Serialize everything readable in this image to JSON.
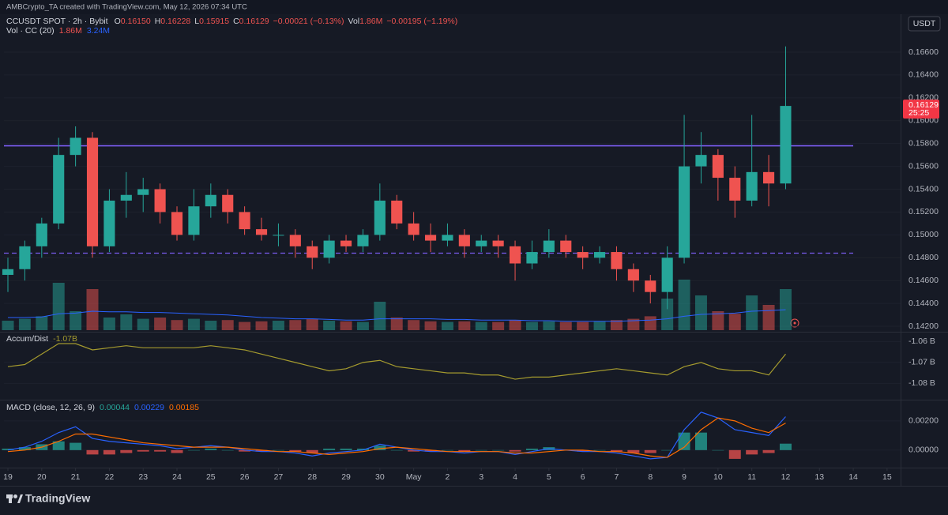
{
  "credit": "AMBCrypto_TA created with TradingView.com, May 12, 2026 07:34 UTC",
  "currency": "USDT",
  "watermark": "TradingView",
  "chart_data": [
    {
      "type": "candlestick",
      "title": "CCUSDT SPOT · 2h · Bybit",
      "ohlc_legend": [
        {
          "key": "O",
          "value": "0.16150"
        },
        {
          "key": "H",
          "value": "0.16228"
        },
        {
          "key": "L",
          "value": "0.15915"
        },
        {
          "key": "C",
          "value": "0.16129"
        }
      ],
      "change": "−0.00021 (−0.13%)",
      "vol_key": "Vol",
      "vol_value": "1.86M",
      "vol_change": "−0.00195 (−1.19%)",
      "colors": {
        "up": "#26a69a",
        "down": "#ef5350"
      },
      "x": [
        0,
        0.5,
        1,
        1.5,
        2,
        2.5,
        3,
        3.5,
        4,
        4.5,
        5,
        5.5,
        6,
        6.5,
        7,
        7.5,
        8,
        8.5,
        9,
        9.5,
        10,
        10.5,
        11,
        11.5,
        12,
        12.5,
        13,
        13.5,
        14,
        14.5,
        15,
        15.5,
        16,
        16.5,
        17,
        17.5,
        18,
        18.5,
        19,
        19.5,
        20,
        20.5,
        21,
        21.5,
        22,
        22.5,
        23
      ],
      "open": [
        0.1465,
        0.147,
        0.149,
        0.151,
        0.157,
        0.1585,
        0.149,
        0.153,
        0.1535,
        0.154,
        0.152,
        0.15,
        0.1525,
        0.1535,
        0.152,
        0.1505,
        0.15,
        0.15,
        0.149,
        0.148,
        0.1495,
        0.149,
        0.15,
        0.153,
        0.151,
        0.15,
        0.1495,
        0.15,
        0.149,
        0.1495,
        0.149,
        0.1475,
        0.1485,
        0.1495,
        0.1485,
        0.148,
        0.1485,
        0.147,
        0.146,
        0.145,
        0.148,
        0.156,
        0.157,
        0.155,
        0.153,
        0.1555,
        0.1545
      ],
      "high": [
        0.148,
        0.1495,
        0.1515,
        0.1585,
        0.1595,
        0.159,
        0.154,
        0.1555,
        0.155,
        0.1545,
        0.1525,
        0.154,
        0.1545,
        0.154,
        0.1525,
        0.1515,
        0.151,
        0.1505,
        0.1495,
        0.15,
        0.15,
        0.1505,
        0.1545,
        0.1535,
        0.152,
        0.151,
        0.151,
        0.1505,
        0.15,
        0.15,
        0.1495,
        0.1495,
        0.1505,
        0.15,
        0.149,
        0.149,
        0.149,
        0.1475,
        0.1465,
        0.149,
        0.1605,
        0.159,
        0.1575,
        0.156,
        0.1605,
        0.157,
        0.1665
      ],
      "low": [
        0.145,
        0.146,
        0.148,
        0.1505,
        0.156,
        0.148,
        0.1485,
        0.1515,
        0.152,
        0.151,
        0.1495,
        0.1495,
        0.1515,
        0.151,
        0.15,
        0.1495,
        0.149,
        0.148,
        0.147,
        0.1475,
        0.1485,
        0.1485,
        0.1495,
        0.1505,
        0.1495,
        0.1485,
        0.149,
        0.148,
        0.1485,
        0.148,
        0.146,
        0.147,
        0.148,
        0.148,
        0.147,
        0.1475,
        0.146,
        0.145,
        0.144,
        0.1435,
        0.1475,
        0.1545,
        0.153,
        0.1515,
        0.1525,
        0.1525,
        0.154
      ],
      "close": [
        0.147,
        0.149,
        0.151,
        0.157,
        0.1585,
        0.149,
        0.153,
        0.1535,
        0.154,
        0.152,
        0.15,
        0.1525,
        0.1535,
        0.152,
        0.1505,
        0.15,
        0.15,
        0.149,
        0.148,
        0.1495,
        0.149,
        0.15,
        0.153,
        0.151,
        0.15,
        0.1495,
        0.15,
        0.149,
        0.1495,
        0.149,
        0.1475,
        0.1485,
        0.1495,
        0.1485,
        0.148,
        0.1485,
        0.147,
        0.146,
        0.145,
        0.148,
        0.156,
        0.157,
        0.155,
        0.153,
        0.1555,
        0.1545,
        0.16129
      ],
      "volume": {
        "name": "Vol · CC (20)",
        "last": "1.86M",
        "ma_last": "3.24M",
        "ma_color": "#2962ff",
        "values": [
          1.5,
          1.8,
          2.2,
          7.5,
          3.0,
          6.5,
          2.0,
          2.5,
          1.8,
          2.0,
          1.6,
          1.8,
          1.5,
          1.6,
          1.3,
          1.4,
          1.5,
          1.6,
          1.8,
          1.5,
          1.4,
          1.3,
          4.5,
          2.0,
          1.6,
          1.4,
          1.3,
          1.4,
          1.3,
          1.3,
          1.6,
          1.3,
          1.4,
          1.3,
          1.3,
          1.4,
          1.6,
          1.8,
          2.2,
          5.0,
          8.0,
          5.5,
          3.0,
          2.6,
          5.5,
          4.0,
          6.5
        ],
        "ma": [
          2.0,
          2.0,
          2.1,
          2.6,
          2.7,
          3.0,
          2.9,
          2.9,
          2.8,
          2.8,
          2.7,
          2.6,
          2.5,
          2.4,
          2.2,
          2.0,
          1.9,
          1.8,
          1.8,
          1.7,
          1.6,
          1.6,
          1.8,
          1.8,
          1.8,
          1.8,
          1.7,
          1.7,
          1.6,
          1.6,
          1.6,
          1.5,
          1.5,
          1.4,
          1.4,
          1.4,
          1.4,
          1.5,
          1.6,
          1.8,
          2.2,
          2.5,
          2.6,
          2.7,
          3.0,
          3.1,
          3.24
        ]
      },
      "hlines": [
        {
          "value": 0.1578,
          "dashed": false,
          "color": "#7b5cf0"
        },
        {
          "value": 0.1484,
          "dashed": true,
          "color": "#7b5cf0"
        }
      ],
      "price_tag": {
        "value": 0.16129,
        "label": "0.16129",
        "countdown": "25:25",
        "color": "#f23645"
      },
      "xlim": [
        -0.117,
        26.4
      ],
      "xticks": [
        {
          "value": 0,
          "label": "19"
        },
        {
          "value": 1,
          "label": "20"
        },
        {
          "value": 2,
          "label": "21"
        },
        {
          "value": 3,
          "label": "22"
        },
        {
          "value": 4,
          "label": "23"
        },
        {
          "value": 5,
          "label": "24"
        },
        {
          "value": 6,
          "label": "25"
        },
        {
          "value": 7,
          "label": "26"
        },
        {
          "value": 8,
          "label": "27"
        },
        {
          "value": 9,
          "label": "28"
        },
        {
          "value": 10,
          "label": "29"
        },
        {
          "value": 11,
          "label": "30"
        },
        {
          "value": 12,
          "label": "May"
        },
        {
          "value": 13,
          "label": "2"
        },
        {
          "value": 14,
          "label": "3"
        },
        {
          "value": 15,
          "label": "4"
        },
        {
          "value": 16,
          "label": "5"
        },
        {
          "value": 17,
          "label": "6"
        },
        {
          "value": 18,
          "label": "7"
        },
        {
          "value": 19,
          "label": "8"
        },
        {
          "value": 20,
          "label": "9"
        },
        {
          "value": 21,
          "label": "10"
        },
        {
          "value": 22,
          "label": "11"
        },
        {
          "value": 23,
          "label": "12"
        },
        {
          "value": 24,
          "label": "13"
        },
        {
          "value": 25,
          "label": "14"
        },
        {
          "value": 26,
          "label": "15"
        }
      ],
      "ylim": [
        0.14152,
        0.16918
      ],
      "yticks": [
        {
          "value": 0.142,
          "label": "0.14200"
        },
        {
          "value": 0.144,
          "label": "0.14400"
        },
        {
          "value": 0.146,
          "label": "0.14600"
        },
        {
          "value": 0.148,
          "label": "0.14800"
        },
        {
          "value": 0.15,
          "label": "0.15000"
        },
        {
          "value": 0.152,
          "label": "0.15200"
        },
        {
          "value": 0.154,
          "label": "0.15400"
        },
        {
          "value": 0.156,
          "label": "0.15600"
        },
        {
          "value": 0.158,
          "label": "0.15800"
        },
        {
          "value": 0.16,
          "label": "0.16000"
        },
        {
          "value": 0.162,
          "label": "0.16200"
        },
        {
          "value": 0.164,
          "label": "0.16400"
        },
        {
          "value": 0.166,
          "label": "0.16600"
        }
      ],
      "grid": true
    },
    {
      "type": "line",
      "series": [
        {
          "name": "Accum/Dist",
          "color": "#a59b2e",
          "legend_value": "-1.07B",
          "values": [
            -1.072,
            -1.071,
            -1.066,
            -1.061,
            -1.061,
            -1.064,
            -1.063,
            -1.062,
            -1.063,
            -1.063,
            -1.063,
            -1.063,
            -1.062,
            -1.063,
            -1.064,
            -1.066,
            -1.068,
            -1.07,
            -1.072,
            -1.074,
            -1.073,
            -1.07,
            -1.069,
            -1.072,
            -1.073,
            -1.074,
            -1.075,
            -1.075,
            -1.076,
            -1.076,
            -1.078,
            -1.077,
            -1.077,
            -1.076,
            -1.075,
            -1.074,
            -1.073,
            -1.074,
            -1.075,
            -1.076,
            -1.072,
            -1.07,
            -1.073,
            -1.074,
            -1.074,
            -1.076,
            -1.066
          ]
        }
      ],
      "ylim": [
        -1.0878,
        -1.0557
      ],
      "yticks": [
        {
          "value": -1.06,
          "label": "-1.06 B"
        },
        {
          "value": -1.07,
          "label": "-1.07 B"
        },
        {
          "value": -1.08,
          "label": "-1.08 B"
        }
      ],
      "grid": true
    },
    {
      "type": "macd",
      "title": "MACD (close, 12, 26, 9)",
      "series": [
        {
          "kind": "histogram",
          "color": "#26a69a",
          "negative_color": "#ef5350",
          "legend_value": "0.00044",
          "values": [
            0.0001,
            0.0002,
            0.0004,
            0.0006,
            0.0005,
            -0.0003,
            -0.0003,
            -0.0002,
            -0.0001,
            -0.0001,
            -0.0002,
            0,
            0.0001,
            0,
            -0.0001,
            -0.0001,
            0,
            -0.0001,
            -0.0002,
            0.0001,
            0.0001,
            0.0001,
            0.0003,
            0,
            -0.0001,
            -0.0001,
            0,
            -0.0001,
            0,
            0,
            -0.0001,
            0.0001,
            0.0002,
            0,
            -0.0001,
            0,
            -0.0001,
            -0.0002,
            -0.0002,
            0,
            0.0012,
            0.0012,
            0,
            -0.0006,
            -0.0003,
            -0.0002,
            0.00044
          ]
        },
        {
          "kind": "line",
          "color": "#2962ff",
          "legend_value": "0.00229",
          "values": [
            0,
            0.0002,
            0.0006,
            0.0012,
            0.0016,
            0.0008,
            0.0006,
            0.0005,
            0.0004,
            0.0003,
            0.0001,
            0.0002,
            0.0003,
            0.0002,
            0,
            -0.0001,
            -0.0001,
            -0.0002,
            -0.0004,
            -0.0002,
            -0.0001,
            0,
            0.0004,
            0.0002,
            0,
            -0.0001,
            -0.0001,
            -0.0002,
            -0.0001,
            -0.0001,
            -0.0003,
            -0.0001,
            0.0001,
            0,
            -0.0001,
            -0.0001,
            -0.0002,
            -0.0004,
            -0.0006,
            -0.0005,
            0.0014,
            0.0026,
            0.0022,
            0.0014,
            0.0012,
            0.001,
            0.00229
          ]
        },
        {
          "kind": "line",
          "color": "#ff6d00",
          "legend_value": "0.00185",
          "values": [
            -0.0001,
            0,
            0.0002,
            0.0006,
            0.0011,
            0.0011,
            0.0009,
            0.0007,
            0.0005,
            0.0004,
            0.0003,
            0.0002,
            0.0002,
            0.0002,
            0.0001,
            0,
            -0.0001,
            -0.0001,
            -0.0002,
            -0.0003,
            -0.0002,
            -0.0001,
            0.0001,
            0.0002,
            0.0001,
            0,
            -0.0001,
            -0.0001,
            -0.0001,
            -0.0001,
            -0.0002,
            -0.0002,
            -0.0001,
            0,
            0,
            -0.0001,
            -0.0001,
            -0.0002,
            -0.0004,
            -0.0005,
            0.0002,
            0.0014,
            0.0022,
            0.002,
            0.0015,
            0.0012,
            0.00185
          ]
        }
      ],
      "ylim": [
        -0.0012,
        0.0034
      ],
      "yticks": [
        {
          "value": 0,
          "label": "0.00000"
        },
        {
          "value": 0.002,
          "label": "0.00200"
        }
      ],
      "grid": true
    }
  ]
}
